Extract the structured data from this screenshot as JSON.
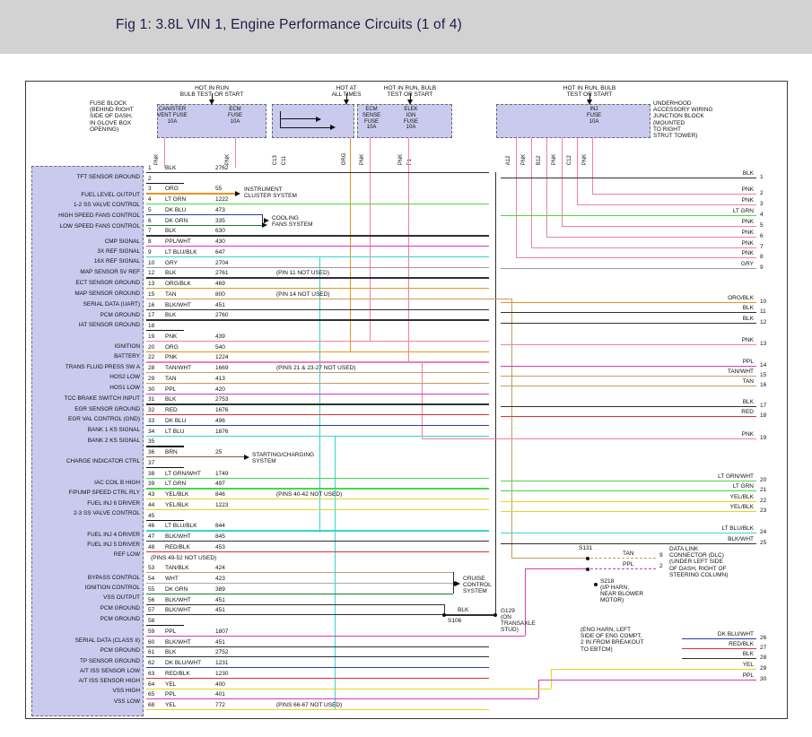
{
  "header": {
    "title": "Fig 1: 3.8L VIN 1, Engine Performance Circuits (1 of 4)"
  },
  "colors": {
    "BLK": "#303030",
    "BLK/WHT": "#303030",
    "WHT": "#aaaaaa",
    "GRY": "#9a9a9a",
    "PNK": "#f27fab",
    "ORG": "#e8951e",
    "ORG/BLK": "#e8951e",
    "LT GRN": "#4ad54a",
    "LT GRN/WHT": "#4ad54a",
    "DK GRN": "#1c7a2d",
    "DK BLU": "#2b3f9e",
    "DK BLU/WHT": "#2b3f9e",
    "LT BLU": "#37d3d3",
    "LT BLU/BLK": "#37d3d3",
    "PPL": "#d23bc0",
    "PPL/WHT": "#d23bc0",
    "RED": "#e03030",
    "RED/BLK": "#e03030",
    "YEL": "#e8d51d",
    "YEL/BLK": "#e8d51d",
    "TAN": "#c79c63",
    "TAN/WHT": "#c79c63",
    "TAN/BLK": "#c79c63",
    "BRN": "#8a5a2a"
  },
  "top": {
    "fuse_block_note": [
      "FUSE BLOCK",
      "(BEHIND RIGHT",
      "SIDE OF DASH,",
      "IN GLOVE BOX",
      "OPENING)"
    ],
    "junction_note": [
      "UNDERHOOD",
      "ACCESSORY WIRING",
      "JUNCTION BLOCK",
      "(MOUNTED",
      "TO RIGHT",
      "STRUT TOWER)"
    ],
    "feeds": [
      {
        "lines": [
          "HOT IN RUN",
          "BULB TEST, OR START"
        ]
      },
      {
        "lines": [
          "HOT AT",
          "ALL TIMES"
        ]
      },
      {
        "lines": [
          "HOT IN RUN, BULB",
          "TEST OR START"
        ]
      },
      {
        "lines": [
          "HOT IN RUN, BULB",
          "TEST OR START"
        ]
      }
    ],
    "fuses": [
      {
        "lines": [
          "CANISTER",
          "VENT FUSE",
          "10A"
        ]
      },
      {
        "lines": [
          "ECM",
          "FUSE",
          "10A"
        ]
      },
      {
        "lines": [
          "ECM",
          "SENSE",
          "FUSE",
          "10A"
        ]
      },
      {
        "lines": [
          "ELEK",
          "IGN",
          "FUSE",
          "10A"
        ]
      },
      {
        "lines": [
          "INJ",
          "FUSE",
          "10A"
        ]
      }
    ],
    "pin_labels": [
      "PNK",
      "PNK",
      "C13",
      "C11",
      "ORG",
      "PNK",
      "PNK",
      "F1",
      "A12",
      "PNK",
      "B12",
      "PNK",
      "C12",
      "PNK"
    ]
  },
  "left_labels": [
    "TFT SENSOR GROUND",
    "FUEL LEVEL OUTPUT",
    "1-2 SS VALVE CONTROL",
    "HIGH SPEED FANS CONTROL",
    "LOW SPEED FANS CONTROL",
    "CMP SIGNAL",
    "3X REF SIGNAL",
    "16X REF SIGNAL",
    "MAP SENSOR 5V REF",
    "ECT SENSOR GROUND",
    "MAP SENSOR GROUND",
    "SERIAL DATA (UART)",
    "PCM GROUND",
    "IAT SENSOR GROUND",
    "IGNITION",
    "BATTERY",
    "TRANS FLUID PRESS SW A",
    "HOS2 LOW",
    "HOS1 LOW",
    "TCC BRAKE SWITCH INPUT",
    "EGR SENSOR GROUND",
    "EGR VAL CONTROL (GND)",
    "BANK 1 KS SIGNAL",
    "BANK 2 KS SIGNAL",
    "CHARGE INDICATOR CTRL",
    "IAC COIL B HIGH",
    "F/PUMP SPEED CTRL RLY",
    "FUEL INJ 6 DRIVER",
    "2-3 SS VALVE CONTROL",
    "FUEL INJ 4 DRIVER",
    "FUEL INJ 5 DRIVER",
    "REF LOW",
    "BYPASS CONTROL",
    "IGNITION CONTROL",
    "VSS OUTPUT",
    "PCM GROUND",
    "PCM GROUND",
    "SERIAL DATA (CLASS II)",
    "PCM GROUND",
    "TP SENSOR GROUND",
    "A/T ISS SENSOR LOW",
    "A/T ISS SENSOR HIGH",
    "VSS HIGH",
    "VSS LOW"
  ],
  "center_rows": [
    {
      "p": "1",
      "c": "BLK",
      "n": "2762",
      "note": ""
    },
    {
      "p": "2",
      "c": "",
      "n": "",
      "note": ""
    },
    {
      "p": "3",
      "c": "ORG",
      "n": "55",
      "note": ""
    },
    {
      "p": "4",
      "c": "LT GRN",
      "n": "1222",
      "note": ""
    },
    {
      "p": "5",
      "c": "DK BLU",
      "n": "473",
      "note": ""
    },
    {
      "p": "6",
      "c": "DK GRN",
      "n": "335",
      "note": ""
    },
    {
      "p": "7",
      "c": "BLK",
      "n": "630",
      "note": ""
    },
    {
      "p": "8",
      "c": "PPL/WHT",
      "n": "430",
      "note": ""
    },
    {
      "p": "9",
      "c": "LT BLU/BLK",
      "n": "647",
      "note": ""
    },
    {
      "p": "10",
      "c": "GRY",
      "n": "2704",
      "note": ""
    },
    {
      "p": "12",
      "c": "BLK",
      "n": "2761",
      "note": "(PIN 11 NOT USED)"
    },
    {
      "p": "13",
      "c": "ORG/BLK",
      "n": "469",
      "note": ""
    },
    {
      "p": "15",
      "c": "TAN",
      "n": "800",
      "note": "(PIN 14 NOT USED)"
    },
    {
      "p": "16",
      "c": "BLK/WHT",
      "n": "451",
      "note": ""
    },
    {
      "p": "17",
      "c": "BLK",
      "n": "2760",
      "note": ""
    },
    {
      "p": "18",
      "c": "",
      "n": "",
      "note": ""
    },
    {
      "p": "19",
      "c": "PNK",
      "n": "439",
      "note": ""
    },
    {
      "p": "20",
      "c": "ORG",
      "n": "540",
      "note": ""
    },
    {
      "p": "22",
      "c": "PNK",
      "n": "1224",
      "note": ""
    },
    {
      "p": "28",
      "c": "TAN/WHT",
      "n": "1669",
      "note": "(PINS 21 & 23-27 NOT USED)"
    },
    {
      "p": "29",
      "c": "TAN",
      "n": "413",
      "note": ""
    },
    {
      "p": "30",
      "c": "PPL",
      "n": "420",
      "note": ""
    },
    {
      "p": "31",
      "c": "BLK",
      "n": "2753",
      "note": ""
    },
    {
      "p": "32",
      "c": "RED",
      "n": "1676",
      "note": ""
    },
    {
      "p": "33",
      "c": "DK BLU",
      "n": "496",
      "note": ""
    },
    {
      "p": "34",
      "c": "LT BLU",
      "n": "1876",
      "note": ""
    },
    {
      "p": "35",
      "c": "",
      "n": "",
      "note": ""
    },
    {
      "p": "36",
      "c": "BRN",
      "n": "25",
      "note": ""
    },
    {
      "p": "37",
      "c": "",
      "n": "",
      "note": ""
    },
    {
      "p": "38",
      "c": "LT GRN/WHT",
      "n": "1749",
      "note": ""
    },
    {
      "p": "39",
      "c": "LT GRN",
      "n": "497",
      "note": ""
    },
    {
      "p": "43",
      "c": "YEL/BLK",
      "n": "846",
      "note": "(PINS 40-42 NOT USED)"
    },
    {
      "p": "44",
      "c": "YEL/BLK",
      "n": "1223",
      "note": ""
    },
    {
      "p": "45",
      "c": "",
      "n": "",
      "note": ""
    },
    {
      "p": "46",
      "c": "LT BLU/BLK",
      "n": "844",
      "note": ""
    },
    {
      "p": "47",
      "c": "BLK/WHT",
      "n": "845",
      "note": ""
    },
    {
      "p": "48",
      "c": "RED/BLK",
      "n": "453",
      "note": ""
    },
    {
      "p": "",
      "c": "",
      "n": "",
      "note": "(PINS 49-52 NOT USED)"
    },
    {
      "p": "53",
      "c": "TAN/BLK",
      "n": "424",
      "note": ""
    },
    {
      "p": "54",
      "c": "WHT",
      "n": "423",
      "note": ""
    },
    {
      "p": "55",
      "c": "DK GRN",
      "n": "389",
      "note": ""
    },
    {
      "p": "56",
      "c": "BLK/WHT",
      "n": "451",
      "note": ""
    },
    {
      "p": "57",
      "c": "BLK/WHT",
      "n": "451",
      "note": ""
    },
    {
      "p": "58",
      "c": "",
      "n": "",
      "note": ""
    },
    {
      "p": "59",
      "c": "PPL",
      "n": "1807",
      "note": ""
    },
    {
      "p": "60",
      "c": "BLK/WHT",
      "n": "451",
      "note": ""
    },
    {
      "p": "61",
      "c": "BLK",
      "n": "2752",
      "note": ""
    },
    {
      "p": "62",
      "c": "DK BLU/WHT",
      "n": "1231",
      "note": ""
    },
    {
      "p": "63",
      "c": "RED/BLK",
      "n": "1230",
      "note": ""
    },
    {
      "p": "64",
      "c": "YEL",
      "n": "400",
      "note": ""
    },
    {
      "p": "65",
      "c": "PPL",
      "n": "401",
      "note": ""
    },
    {
      "p": "68",
      "c": "YEL",
      "n": "772",
      "note": "(PINS 66-67 NOT USED)"
    }
  ],
  "right_rows": [
    {
      "c": "BLK",
      "p": "1"
    },
    {
      "c": "PNK",
      "p": "2"
    },
    {
      "c": "PNK",
      "p": "3"
    },
    {
      "c": "LT GRN",
      "p": "4"
    },
    {
      "c": "PNK",
      "p": "5"
    },
    {
      "c": "PNK",
      "p": "6"
    },
    {
      "c": "PNK",
      "p": "7"
    },
    {
      "c": "PNK",
      "p": "8"
    },
    {
      "c": "GRY",
      "p": "9"
    },
    {
      "c": "ORG/BLK",
      "p": "10"
    },
    {
      "c": "BLK",
      "p": "11"
    },
    {
      "c": "BLK",
      "p": "12"
    },
    {
      "c": "PNK",
      "p": "13"
    },
    {
      "c": "PPL",
      "p": "14"
    },
    {
      "c": "TAN/WHT",
      "p": "15"
    },
    {
      "c": "TAN",
      "p": "16"
    },
    {
      "c": "BLK",
      "p": "17"
    },
    {
      "c": "RED",
      "p": "18"
    },
    {
      "c": "PNK",
      "p": "19"
    },
    {
      "c": "LT GRN/WHT",
      "p": "20"
    },
    {
      "c": "LT GRN",
      "p": "21"
    },
    {
      "c": "YEL/BLK",
      "p": "22"
    },
    {
      "c": "YEL/BLK",
      "p": "23"
    },
    {
      "c": "LT BLU/BLK",
      "p": "24"
    },
    {
      "c": "BLK/WHT",
      "p": "25"
    },
    {
      "c": "DK BLU/WHT",
      "p": "26"
    },
    {
      "c": "RED/BLK",
      "p": "27"
    },
    {
      "c": "BLK",
      "p": "28"
    },
    {
      "c": "YEL",
      "p": "29"
    },
    {
      "c": "PPL",
      "p": "30"
    }
  ],
  "systems": {
    "instrument": [
      "INSTRUMENT",
      "CLUSTER SYSTEM"
    ],
    "cooling": [
      "COOLING",
      "FANS SYSTEM"
    ],
    "charging": [
      "STARTING/CHARGING",
      "SYSTEM"
    ],
    "cruise": [
      "CRUISE",
      "CONTROL",
      "SYSTEM"
    ]
  },
  "grounds": {
    "g129": [
      "G129",
      "(ON",
      "TRANSAXLE",
      "STUD)"
    ],
    "s106": "S106",
    "blk_label": "BLK"
  },
  "dlc": {
    "splice": "S131",
    "wires": [
      {
        "color": "TAN",
        "pin": "9"
      },
      {
        "color": "PPL",
        "pin": "2"
      }
    ],
    "note": [
      "DATA LINK",
      "CONNECTOR (DLC)",
      "(UNDER LEFT SIDE",
      "OF DASH, RIGHT OF",
      "STEERING COLUMN)"
    ]
  },
  "s218_note": [
    "S218",
    "(I/P HARN,",
    "NEAR BLOWER",
    "MOTOR)"
  ],
  "eng_harn_note": [
    "(ENG HARN, LEFT",
    "SIDE OF ENG COMPT,",
    "2 IN FROM BREAKOUT",
    "TO EBTCM)"
  ]
}
